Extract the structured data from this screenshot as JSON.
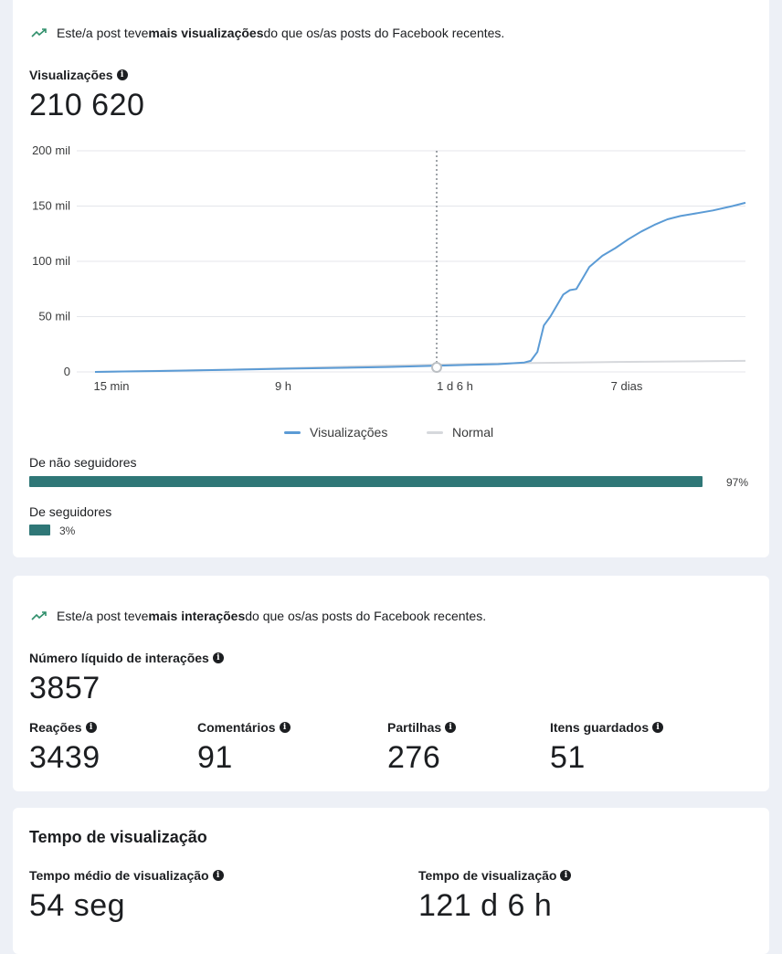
{
  "views_card": {
    "trend_prefix": "Este/a post teve ",
    "trend_bold": "mais visualizações",
    "trend_suffix": " do que os/as posts do Facebook recentes.",
    "metric_label": "Visualizações",
    "metric_value": "210 620",
    "legend": [
      {
        "label": "Visualizações",
        "color": "#5b9bd5"
      },
      {
        "label": "Normal",
        "color": "#d6d8dc"
      }
    ],
    "breakdown": [
      {
        "label": "De não seguidores",
        "percent_text": "97%",
        "fraction": 0.97
      },
      {
        "label": "De seguidores",
        "percent_text": "3%",
        "fraction": 0.03
      }
    ]
  },
  "chart_data": {
    "type": "line",
    "y_ticks": [
      "200 mil",
      "150 mil",
      "100 mil",
      "50 mil",
      "0"
    ],
    "y_tick_values": [
      200000,
      150000,
      100000,
      50000,
      0
    ],
    "x_tick_labels": [
      "15 min",
      "9 h",
      "1 d 6 h",
      "7 dias"
    ],
    "ylim": [
      0,
      200000
    ],
    "grid": true,
    "legend_position": "bottom",
    "marker_label": "1 d 6 h",
    "series": [
      {
        "name": "Visualizações",
        "color": "#5b9bd5",
        "x": [
          0.0,
          0.1,
          0.2,
          0.3,
          0.45,
          0.55,
          0.62,
          0.66,
          0.67,
          0.68,
          0.69,
          0.7,
          0.72,
          0.73,
          0.74,
          0.75,
          0.76,
          0.78,
          0.8,
          0.82,
          0.84,
          0.86,
          0.88,
          0.9,
          0.92,
          0.95,
          0.98,
          1.0
        ],
        "values": [
          0,
          800,
          1800,
          3000,
          4500,
          6000,
          7000,
          8500,
          10000,
          18000,
          42000,
          50000,
          70000,
          74000,
          75000,
          85000,
          95000,
          105000,
          112000,
          120000,
          127000,
          133000,
          138000,
          141000,
          143000,
          146000,
          150000,
          153000
        ]
      },
      {
        "name": "Normal",
        "color": "#d6d8dc",
        "x": [
          0.0,
          0.2,
          0.4,
          0.6,
          0.8,
          1.0
        ],
        "values": [
          0,
          2000,
          5000,
          7500,
          9000,
          10000
        ]
      }
    ]
  },
  "interactions_card": {
    "trend_prefix": "Este/a post teve ",
    "trend_bold": "mais interações",
    "trend_suffix": " do que os/as posts do Facebook recentes.",
    "metric_label": "Número líquido de interações",
    "metric_value": "3857",
    "sub_metrics": [
      {
        "label": "Reações",
        "value": "3439"
      },
      {
        "label": "Comentários",
        "value": "91"
      },
      {
        "label": "Partilhas",
        "value": "276"
      },
      {
        "label": "Itens guardados",
        "value": "51"
      }
    ]
  },
  "watch_time_card": {
    "title": "Tempo de visualização",
    "metrics": [
      {
        "label": "Tempo médio de visualização",
        "value": "54 seg"
      },
      {
        "label": "Tempo de visualização",
        "value": "121 d 6 h"
      }
    ]
  },
  "info_glyph": "i",
  "colors": {
    "accent_teal": "#2f7777",
    "views_line": "#5b9bd5",
    "normal_line": "#d6d8dc",
    "trend_icon": "#2f8f6b"
  }
}
